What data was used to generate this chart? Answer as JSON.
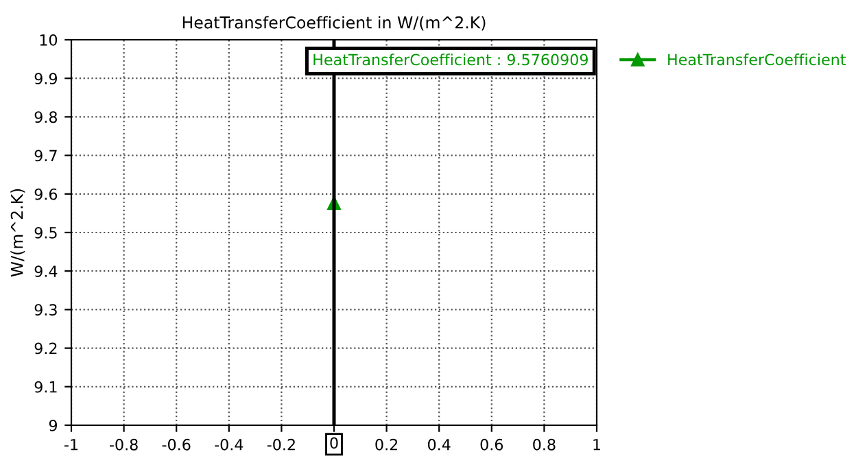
{
  "chart_data": {
    "type": "line",
    "title": "HeatTransferCoefficient in W/(m^2.K)",
    "ylabel": "W/(m^2.K)",
    "x": [
      0
    ],
    "series": [
      {
        "name": "HeatTransferCoefficient",
        "color": "#009900",
        "values": [
          9.5760909
        ]
      }
    ],
    "marker": "triangle",
    "xlim": [
      -1,
      1
    ],
    "xticks": [
      -1,
      -0.8,
      -0.6,
      -0.4,
      -0.2,
      {
        "value": 0,
        "label": null
      },
      0.2,
      0.4,
      0.6,
      0.8,
      1
    ],
    "ylim": [
      9,
      10
    ],
    "yticks": [
      9,
      9.1,
      9.2,
      9.3,
      9.4,
      9.5,
      9.6,
      9.7,
      9.8,
      9.9,
      10
    ],
    "ref_lines": [
      {
        "axis": "x",
        "value": 0,
        "label": "0",
        "color": "#000000"
      }
    ],
    "annotations": [
      "HeatTransferCoefficient : 9.5760909"
    ],
    "grid": true,
    "legend": "top right"
  }
}
